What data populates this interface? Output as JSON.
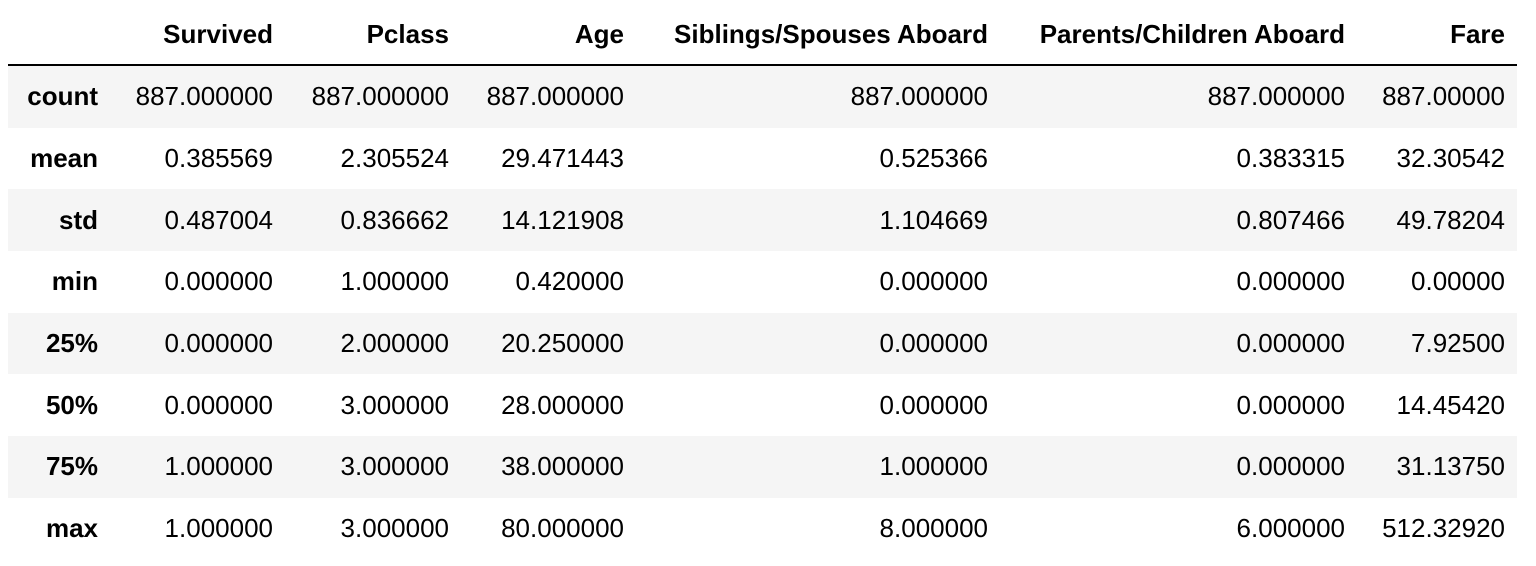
{
  "table": {
    "columns": [
      "Survived",
      "Pclass",
      "Age",
      "Siblings/Spouses Aboard",
      "Parents/Children Aboard",
      "Fare"
    ],
    "rows": [
      {
        "label": "count",
        "cells": [
          "887.000000",
          "887.000000",
          "887.000000",
          "887.000000",
          "887.000000",
          "887.00000"
        ]
      },
      {
        "label": "mean",
        "cells": [
          "0.385569",
          "2.305524",
          "29.471443",
          "0.525366",
          "0.383315",
          "32.30542"
        ]
      },
      {
        "label": "std",
        "cells": [
          "0.487004",
          "0.836662",
          "14.121908",
          "1.104669",
          "0.807466",
          "49.78204"
        ]
      },
      {
        "label": "min",
        "cells": [
          "0.000000",
          "1.000000",
          "0.420000",
          "0.000000",
          "0.000000",
          "0.00000"
        ]
      },
      {
        "label": "25%",
        "cells": [
          "0.000000",
          "2.000000",
          "20.250000",
          "0.000000",
          "0.000000",
          "7.92500"
        ]
      },
      {
        "label": "50%",
        "cells": [
          "0.000000",
          "3.000000",
          "28.000000",
          "0.000000",
          "0.000000",
          "14.45420"
        ]
      },
      {
        "label": "75%",
        "cells": [
          "1.000000",
          "3.000000",
          "38.000000",
          "1.000000",
          "0.000000",
          "31.13750"
        ]
      },
      {
        "label": "max",
        "cells": [
          "1.000000",
          "3.000000",
          "80.000000",
          "8.000000",
          "6.000000",
          "512.32920"
        ]
      }
    ]
  }
}
